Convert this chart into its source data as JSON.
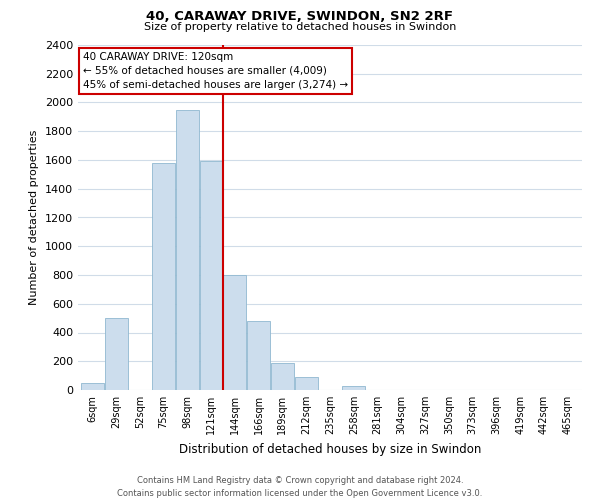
{
  "title": "40, CARAWAY DRIVE, SWINDON, SN2 2RF",
  "subtitle": "Size of property relative to detached houses in Swindon",
  "xlabel": "Distribution of detached houses by size in Swindon",
  "ylabel": "Number of detached properties",
  "bar_color": "#ccdded",
  "bar_edge_color": "#90b8d0",
  "bin_labels": [
    "6sqm",
    "29sqm",
    "52sqm",
    "75sqm",
    "98sqm",
    "121sqm",
    "144sqm",
    "166sqm",
    "189sqm",
    "212sqm",
    "235sqm",
    "258sqm",
    "281sqm",
    "304sqm",
    "327sqm",
    "350sqm",
    "373sqm",
    "396sqm",
    "419sqm",
    "442sqm",
    "465sqm"
  ],
  "bar_heights": [
    50,
    500,
    0,
    1580,
    1950,
    1590,
    800,
    480,
    185,
    90,
    0,
    30,
    0,
    0,
    0,
    0,
    0,
    0,
    0,
    0,
    0
  ],
  "ylim": [
    0,
    2400
  ],
  "yticks": [
    0,
    200,
    400,
    600,
    800,
    1000,
    1200,
    1400,
    1600,
    1800,
    2000,
    2200,
    2400
  ],
  "vline_color": "#cc0000",
  "annotation_title": "40 CARAWAY DRIVE: 120sqm",
  "annotation_line1": "← 55% of detached houses are smaller (4,009)",
  "annotation_line2": "45% of semi-detached houses are larger (3,274) →",
  "annotation_box_color": "#ffffff",
  "annotation_box_edge": "#cc0000",
  "footer1": "Contains HM Land Registry data © Crown copyright and database right 2024.",
  "footer2": "Contains public sector information licensed under the Open Government Licence v3.0.",
  "background_color": "#ffffff",
  "grid_color": "#d0dce8"
}
